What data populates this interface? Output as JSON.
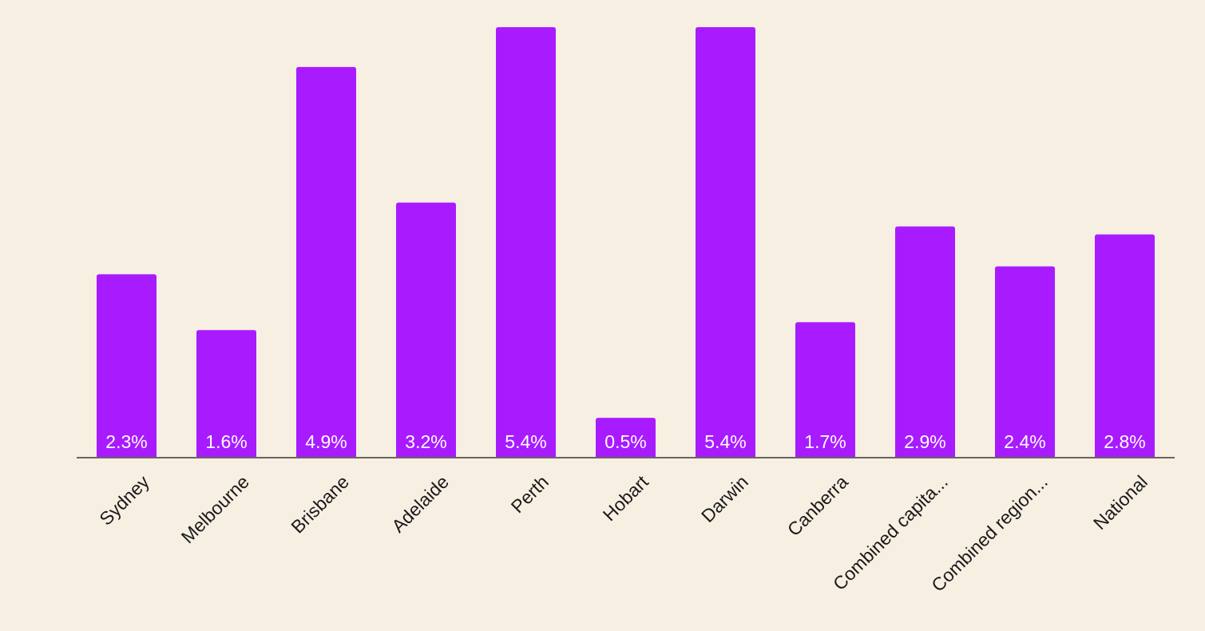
{
  "chart_data": {
    "type": "bar",
    "categories": [
      "Sydney",
      "Melbourne",
      "Brisbane",
      "Adelaide",
      "Perth",
      "Hobart",
      "Darwin",
      "Canberra",
      "Combined capita...",
      "Combined region...",
      "National"
    ],
    "values": [
      2.3,
      1.6,
      4.9,
      3.2,
      5.4,
      0.5,
      5.4,
      1.7,
      2.9,
      2.4,
      2.8
    ],
    "value_labels": [
      "2.3%",
      "1.6%",
      "4.9%",
      "3.2%",
      "5.4%",
      "0.5%",
      "5.4%",
      "1.7%",
      "2.9%",
      "2.4%",
      "2.8%"
    ],
    "title": "",
    "xlabel": "",
    "ylabel": "",
    "ylim": [
      0,
      5.4
    ],
    "grid": false,
    "legend": "none",
    "bar_color": "#a91bff",
    "background_color": "#f8efe3",
    "axis_color": "#6b6460"
  }
}
